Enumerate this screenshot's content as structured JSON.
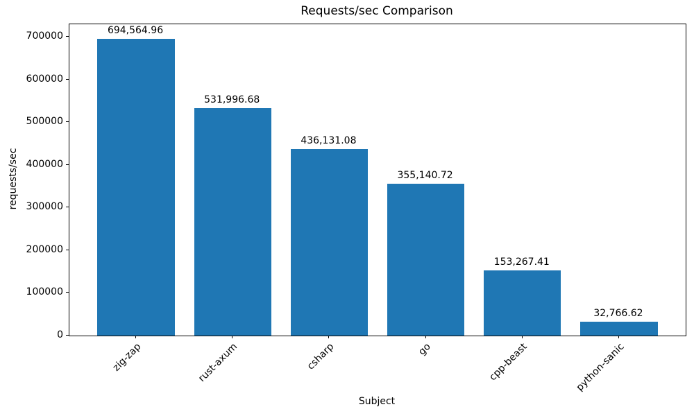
{
  "figure": {
    "background_color": "#ffffff",
    "text_color": "#000000"
  },
  "chart_data": {
    "type": "bar",
    "title": "Requests/sec Comparison",
    "xlabel": "Subject",
    "ylabel": "requests/sec",
    "categories": [
      "zig-zap",
      "rust-axum",
      "csharp",
      "go",
      "cpp-beast",
      "python-sanic"
    ],
    "values": [
      694564.96,
      531996.68,
      436131.08,
      355140.72,
      153267.41,
      32766.62
    ],
    "value_labels": [
      "694,564.96",
      "531,996.68",
      "436,131.08",
      "355,140.72",
      "153,267.41",
      "32,766.62"
    ],
    "bar_color": "#1f77b4",
    "y_ticks": [
      0,
      100000,
      200000,
      300000,
      400000,
      500000,
      600000,
      700000
    ],
    "y_tick_labels": [
      "0",
      "100000",
      "200000",
      "300000",
      "400000",
      "500000",
      "600000",
      "700000"
    ],
    "ylim": [
      0,
      729293
    ],
    "x_tick_rotation_deg": 45,
    "grid": false,
    "legend": null
  }
}
